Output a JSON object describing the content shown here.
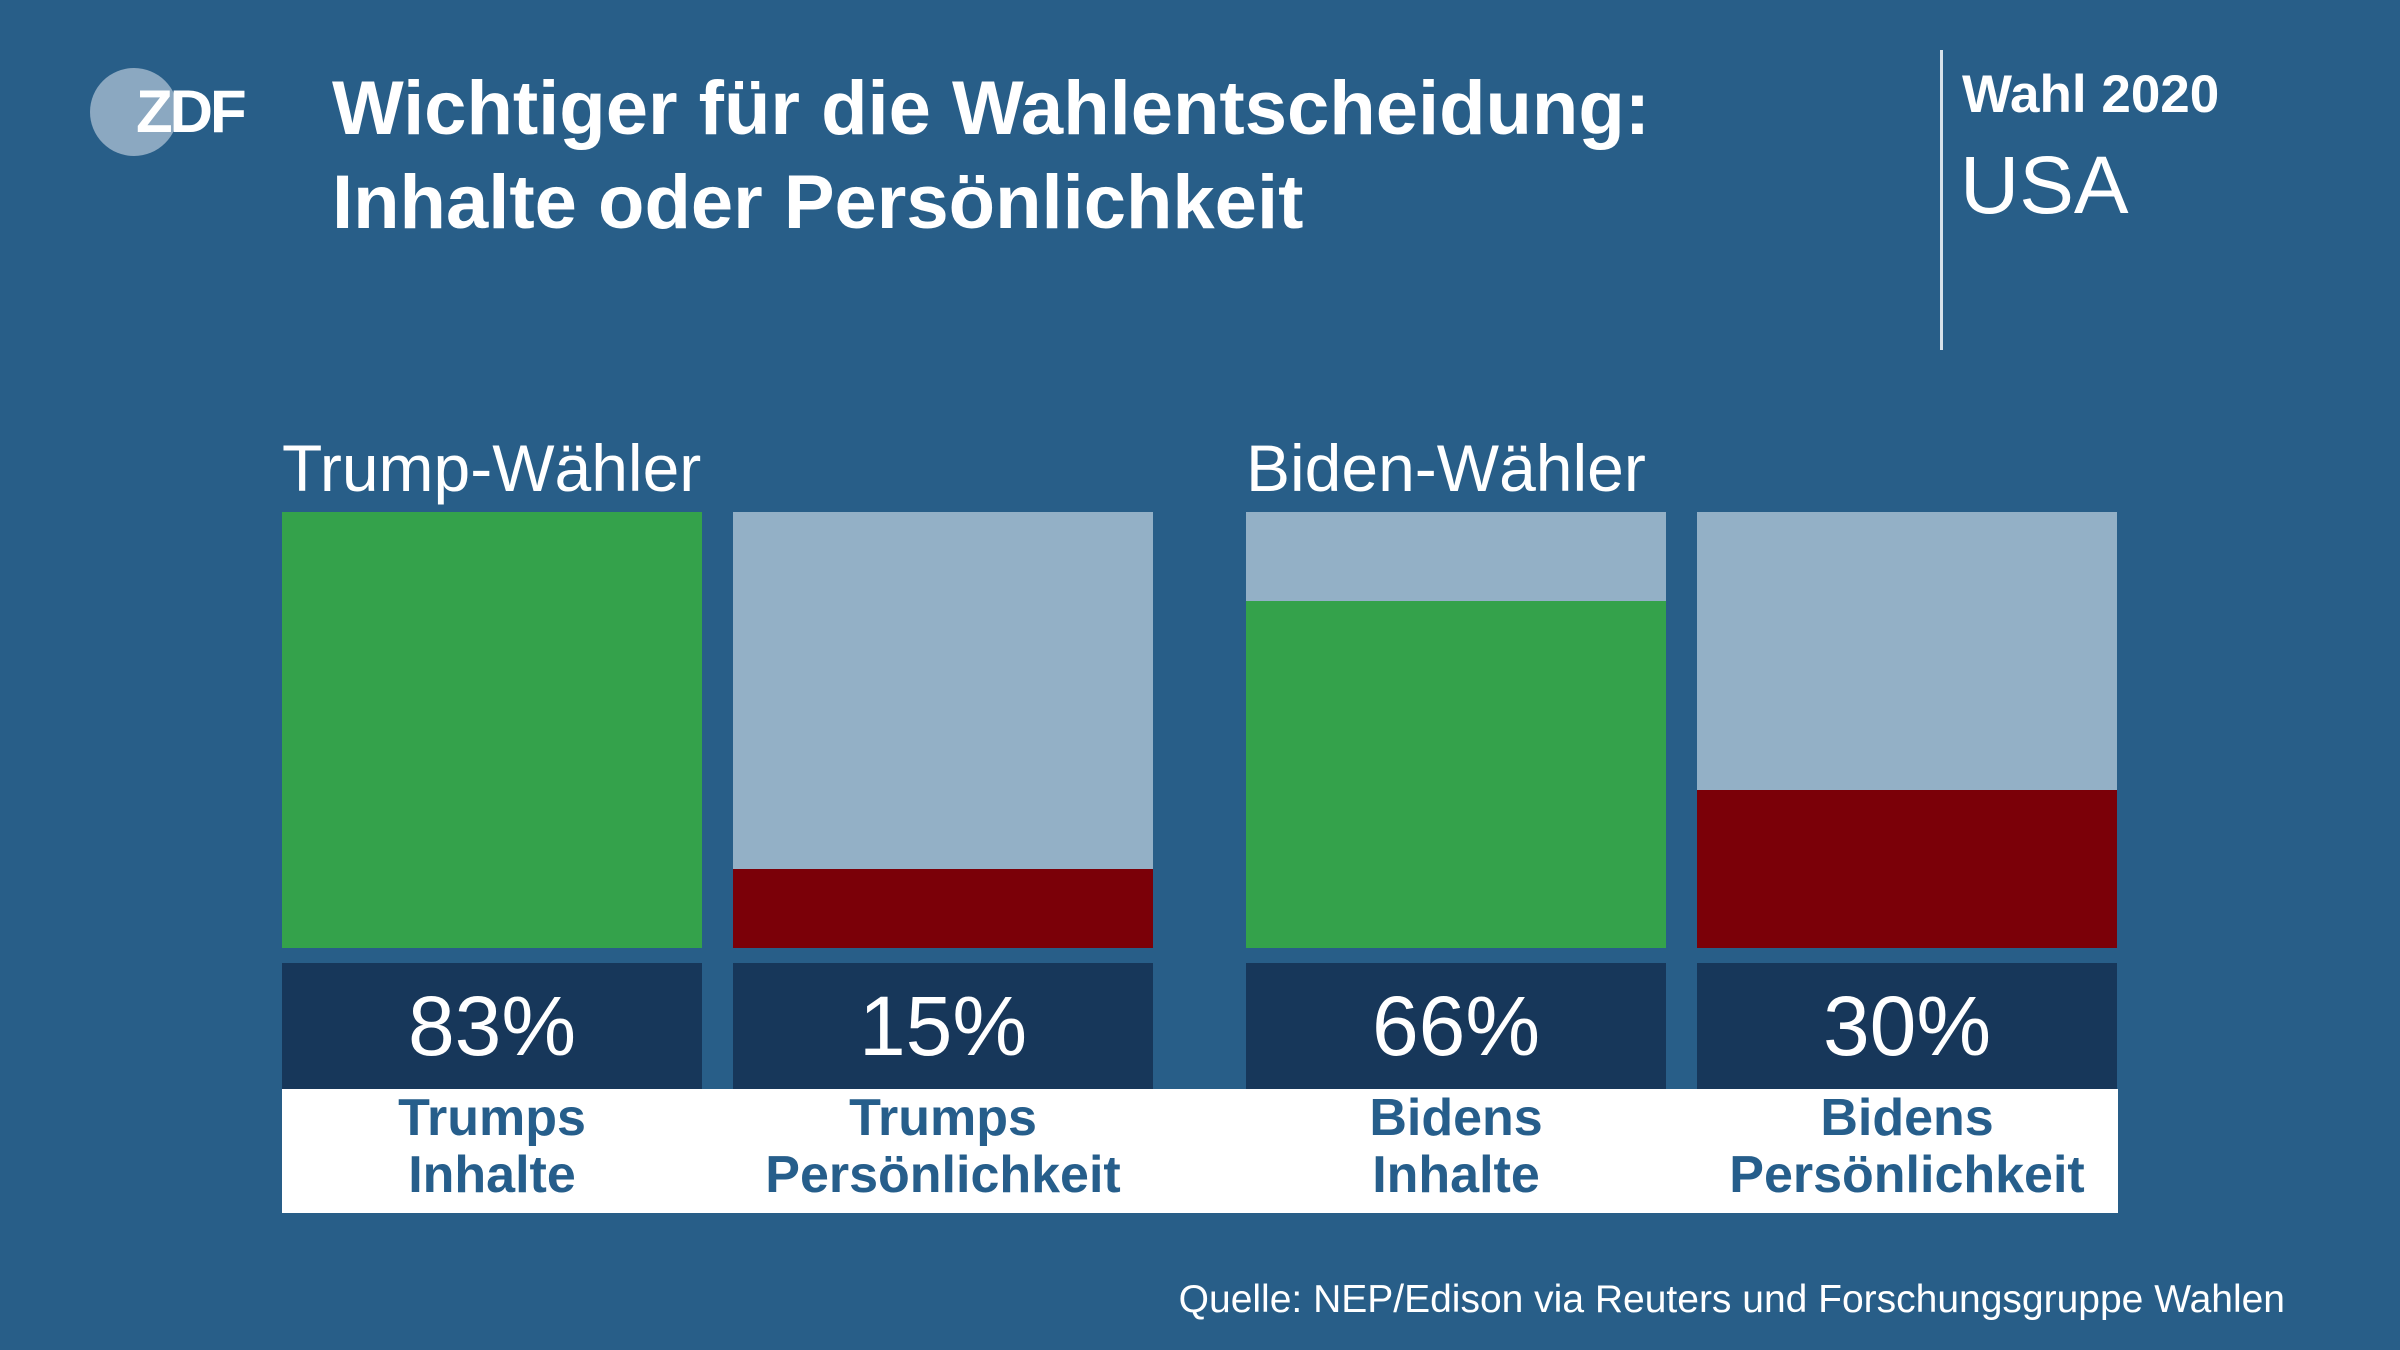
{
  "logo": {
    "text": "ZDF"
  },
  "header": {
    "title_line1": "Wichtiger für die Wahlentscheidung:",
    "title_line2": "Inhalte oder Persönlichkeit"
  },
  "badge": {
    "line1": "Wahl 2020",
    "line2": "USA"
  },
  "colors": {
    "background": "#285e88",
    "bar_background": "#93b0c6",
    "inhalte": "#34a24b",
    "persoenlichkeit": "#7b0008",
    "value_box": "#17375a",
    "label_text": "#265e8b"
  },
  "chart_data": {
    "type": "bar",
    "title": "Wichtiger für die Wahlentscheidung: Inhalte oder Persönlichkeit",
    "ylim": [
      0,
      83
    ],
    "unit": "%",
    "groups": [
      {
        "label": "Trump-Wähler",
        "bars": [
          {
            "label_line1": "Trumps",
            "label_line2": "Inhalte",
            "value": 83,
            "display": "83%",
            "color": "#34a24b"
          },
          {
            "label_line1": "Trumps",
            "label_line2": "Persönlichkeit",
            "value": 15,
            "display": "15%",
            "color": "#7b0008"
          }
        ]
      },
      {
        "label": "Biden-Wähler",
        "bars": [
          {
            "label_line1": "Bidens",
            "label_line2": "Inhalte",
            "value": 66,
            "display": "66%",
            "color": "#34a24b"
          },
          {
            "label_line1": "Bidens",
            "label_line2": "Persönlichkeit",
            "value": 30,
            "display": "30%",
            "color": "#7b0008"
          }
        ]
      }
    ]
  },
  "source": "Quelle: NEP/Edison via Reuters und Forschungsgruppe Wahlen"
}
